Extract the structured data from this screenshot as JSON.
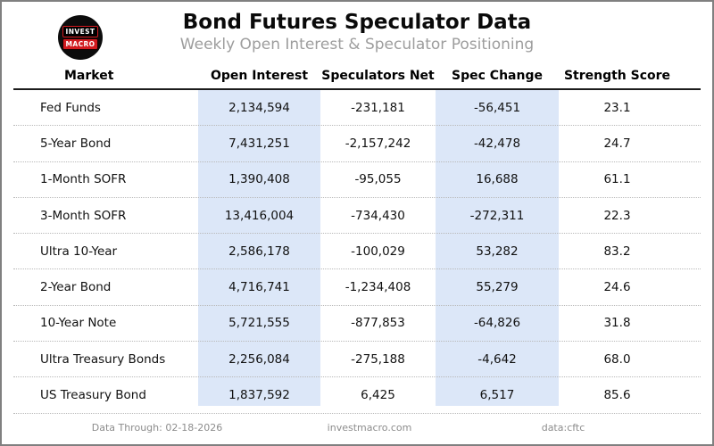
{
  "header": {
    "title": "Bond Futures Speculator Data",
    "subtitle": "Weekly Open Interest & Speculator Positioning",
    "logo": {
      "line1": "INVEST",
      "line2": "MACRO"
    }
  },
  "colors": {
    "column_highlight": "#dce7f8",
    "logo_red": "#d11a1f",
    "subtitle_gray": "#9d9d9d"
  },
  "chart_data": {
    "type": "table",
    "title": "Bond Futures Speculator Data",
    "subtitle": "Weekly Open Interest & Speculator Positioning",
    "columns": [
      "Market",
      "Open Interest",
      "Speculators Net",
      "Spec Change",
      "Strength Score"
    ],
    "highlighted_columns": [
      "Open Interest",
      "Spec Change"
    ],
    "rows": [
      [
        "Fed Funds",
        "2,134,594",
        "-231,181",
        "-56,451",
        "23.1"
      ],
      [
        "5-Year Bond",
        "7,431,251",
        "-2,157,242",
        "-42,478",
        "24.7"
      ],
      [
        "1-Month SOFR",
        "1,390,408",
        "-95,055",
        "16,688",
        "61.1"
      ],
      [
        "3-Month SOFR",
        "13,416,004",
        "-734,430",
        "-272,311",
        "22.3"
      ],
      [
        "Ultra 10-Year",
        "2,586,178",
        "-100,029",
        "53,282",
        "83.2"
      ],
      [
        "2-Year Bond",
        "4,716,741",
        "-1,234,408",
        "55,279",
        "24.6"
      ],
      [
        "10-Year Note",
        "5,721,555",
        "-877,853",
        "-64,826",
        "31.8"
      ],
      [
        "Ultra Treasury Bonds",
        "2,256,084",
        "-275,188",
        "-4,642",
        "68.0"
      ],
      [
        "US Treasury Bond",
        "1,837,592",
        "6,425",
        "6,517",
        "85.6"
      ]
    ]
  },
  "footer": {
    "data_through": "Data Through: 02-18-2026",
    "site": "investmacro.com",
    "source": "data:cftc"
  }
}
